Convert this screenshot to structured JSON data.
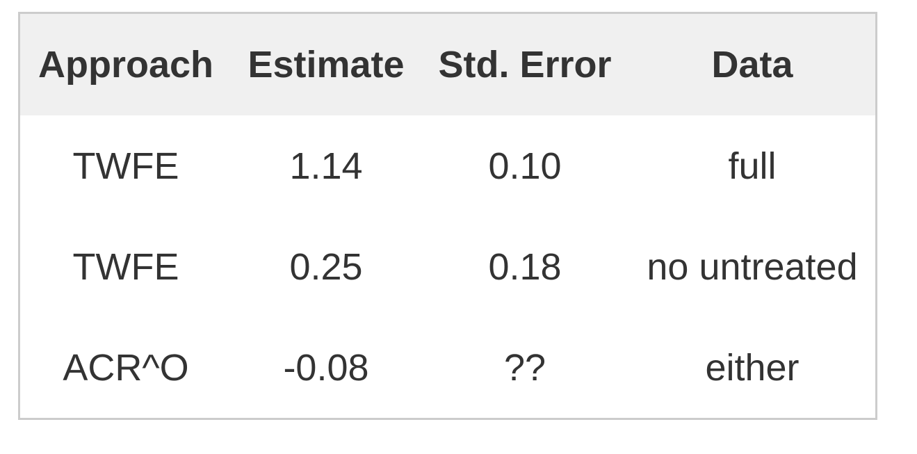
{
  "table": {
    "headers": [
      "Approach",
      "Estimate",
      "Std. Error",
      "Data"
    ],
    "rows": [
      [
        "TWFE",
        "1.14",
        "0.10",
        "full"
      ],
      [
        "TWFE",
        "0.25",
        "0.18",
        "no untreated"
      ],
      [
        "ACR^O",
        "-0.08",
        "??",
        "either"
      ]
    ]
  },
  "colors": {
    "header_background": "#f0f0f0",
    "border": "#cccccc",
    "text": "#333333"
  }
}
